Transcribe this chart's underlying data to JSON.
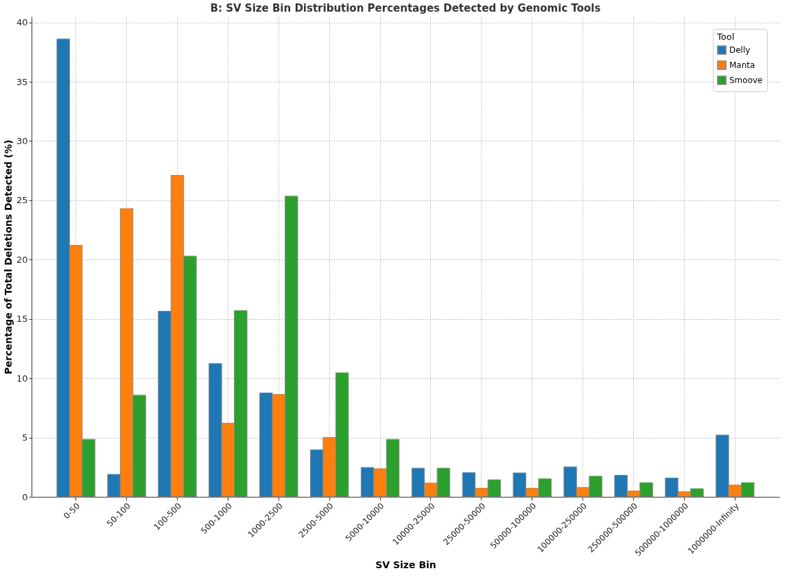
{
  "chart_data": {
    "type": "bar",
    "title": "B: SV Size Bin Distribution Percentages Detected by Genomic Tools",
    "xlabel": "SV Size Bin",
    "ylabel": "Percentage of Total Deletions Detected (%)",
    "legend_title": "Tool",
    "categories": [
      "0-50",
      "50-100",
      "100-500",
      "500-1000",
      "1000-2500",
      "2500-5000",
      "5000-10000",
      "10000-25000",
      "25000-50000",
      "50000-100000",
      "100000-250000",
      "250000-500000",
      "500000-1000000",
      "1000000-Infinity"
    ],
    "series": [
      {
        "name": "Delly",
        "color": "#1f77b4",
        "values": [
          38.6,
          1.9,
          15.65,
          11.24,
          8.76,
          3.97,
          2.48,
          2.42,
          2.04,
          2.02,
          2.53,
          1.82,
          1.59,
          5.21
        ]
      },
      {
        "name": "Manta",
        "color": "#ff7f0e",
        "values": [
          21.2,
          24.3,
          27.1,
          6.2,
          8.63,
          5.0,
          2.37,
          1.16,
          0.73,
          0.73,
          0.79,
          0.49,
          0.43,
          0.99
        ]
      },
      {
        "name": "Smoove",
        "color": "#2ca02c",
        "values": [
          4.85,
          8.57,
          20.3,
          15.7,
          25.35,
          10.46,
          4.85,
          2.42,
          1.44,
          1.52,
          1.74,
          1.2,
          0.69,
          1.2
        ]
      }
    ],
    "ylim": [
      0,
      40.5
    ],
    "yticks": [
      0,
      5,
      10,
      15,
      20,
      25,
      30,
      35,
      40
    ],
    "grid": true,
    "legend": "top right"
  }
}
